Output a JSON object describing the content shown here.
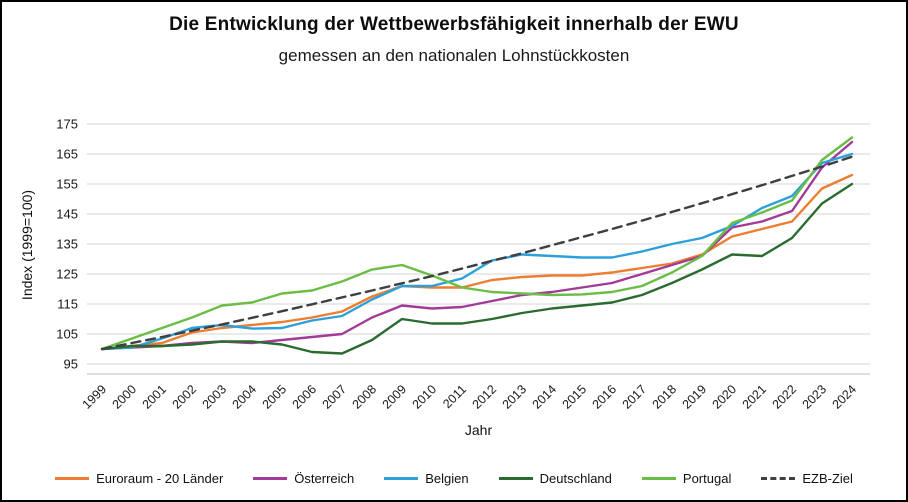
{
  "window": {
    "kind": "chart-image"
  },
  "chart_data": {
    "type": "line",
    "title": "Die Entwicklung der Wettbewerbsfähigkeit innerhalb der EWU",
    "subtitle": "gemessen an den nationalen Lohnstückkosten",
    "xlabel": "Jahr",
    "ylabel": "Index (1999=100)",
    "ylim": [
      95,
      175
    ],
    "yticks": [
      95,
      105,
      115,
      125,
      135,
      145,
      155,
      165,
      175
    ],
    "grid": "horizontal",
    "legend_position": "bottom",
    "categories": [
      "1999",
      "2000",
      "2001",
      "2002",
      "2003",
      "2004",
      "2005",
      "2006",
      "2007",
      "2008",
      "2009",
      "2010",
      "2011",
      "2012",
      "2013",
      "2014",
      "2015",
      "2016",
      "2017",
      "2018",
      "2019",
      "2020",
      "2021",
      "2022",
      "2023",
      "2024"
    ],
    "series": [
      {
        "name": "Euroraum - 20 Länder",
        "color": "#ED7D31",
        "style": "solid",
        "values": [
          100,
          101,
          102,
          105.5,
          107,
          108,
          109,
          110.5,
          112.5,
          117.5,
          121,
          120.5,
          120.5,
          123,
          124,
          124.5,
          124.5,
          125.5,
          127,
          128.5,
          131.5,
          137.5,
          140,
          142.5,
          153.5,
          158
        ]
      },
      {
        "name": "Österreich",
        "color": "#A23B97",
        "style": "solid",
        "values": [
          100,
          100.5,
          101,
          102,
          102.5,
          102,
          103,
          104,
          105,
          110.5,
          114.5,
          113.5,
          114,
          116,
          118,
          119,
          120.5,
          122,
          125,
          128,
          131,
          140.5,
          142.5,
          146,
          160.5,
          169
        ]
      },
      {
        "name": "Belgien",
        "color": "#2BA0DB",
        "style": "solid",
        "values": [
          100,
          100.5,
          103.5,
          107,
          108,
          106.8,
          107,
          109.5,
          111,
          116.5,
          121,
          121,
          123.5,
          129.5,
          131.5,
          131,
          130.5,
          130.5,
          132.5,
          135,
          137,
          141,
          147,
          151,
          162,
          165
        ]
      },
      {
        "name": "Deutschland",
        "color": "#2A6B2F",
        "style": "solid",
        "values": [
          100,
          101,
          101,
          101.5,
          102.5,
          102.5,
          101.5,
          99,
          98.5,
          103,
          110,
          108.5,
          108.5,
          110,
          112,
          113.5,
          114.5,
          115.5,
          118,
          122,
          126.5,
          131.5,
          131,
          137,
          148.5,
          155
        ]
      },
      {
        "name": "Portugal",
        "color": "#6ABD45",
        "style": "solid",
        "values": [
          100,
          103.5,
          107,
          110.5,
          114.5,
          115.5,
          118.5,
          119.5,
          122.5,
          126.5,
          128,
          124.5,
          120.5,
          119,
          118.5,
          118,
          118.2,
          119,
          121,
          125.5,
          131,
          142,
          145.5,
          149.5,
          163,
          170.5
        ]
      },
      {
        "name": "EZB-Ziel",
        "color": "#3F3F3F",
        "style": "dashed",
        "values": [
          100,
          102,
          104,
          106.1,
          108.2,
          110.4,
          112.6,
          114.9,
          117.2,
          119.5,
          121.9,
          124.3,
          126.8,
          129.4,
          131.9,
          134.6,
          137.3,
          140,
          142.8,
          145.7,
          148.6,
          151.6,
          154.6,
          157.7,
          160.8,
          164.1
        ]
      }
    ]
  },
  "layout_colors": {
    "grid": "#D6D6D6",
    "axis_line": "#BFBFBF",
    "tick_text": "#1a1a1a"
  }
}
